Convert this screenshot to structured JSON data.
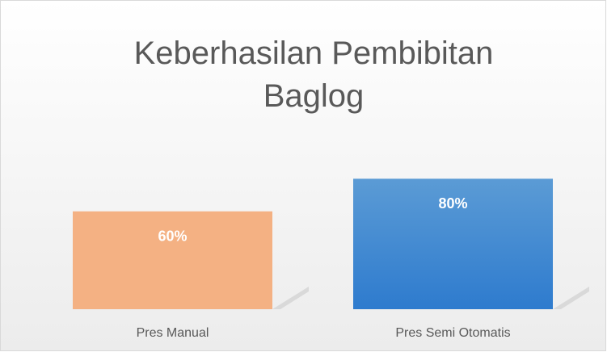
{
  "chart_data": {
    "type": "bar",
    "title": "Keberhasilan Pembibitan Baglog",
    "categories": [
      "Pres Manual",
      "Pres Semi Otomatis"
    ],
    "values": [
      60,
      80
    ],
    "value_labels": [
      "60%",
      "80%"
    ],
    "colors": [
      "#f4b183",
      "#5b9bd5"
    ],
    "ylim": [
      0,
      100
    ]
  }
}
